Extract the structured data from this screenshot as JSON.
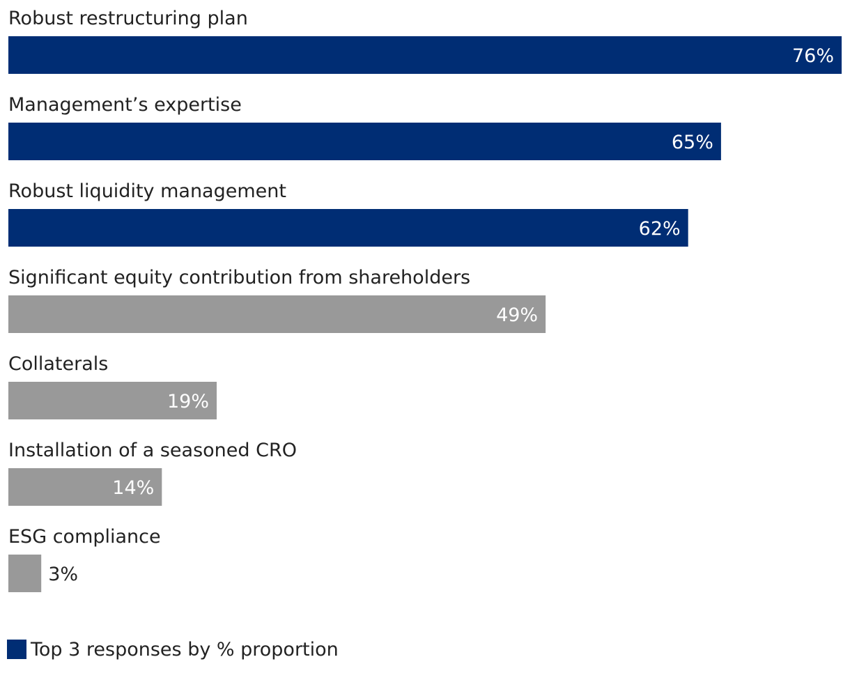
{
  "chart_data": {
    "type": "bar",
    "orientation": "horizontal",
    "categories": [
      "Robust restructuring plan",
      "Management’s expertise",
      "Robust liquidity management",
      "Significant equity contribution from shareholders",
      "Collaterals",
      "Installation of a seasoned CRO",
      "ESG compliance"
    ],
    "values": [
      76,
      65,
      62,
      49,
      19,
      14,
      3
    ],
    "value_labels": [
      "76%",
      "65%",
      "62%",
      "49%",
      "19%",
      "14%",
      "3%"
    ],
    "highlight": [
      true,
      true,
      true,
      false,
      false,
      false,
      false
    ],
    "xlim": [
      0,
      76
    ],
    "grid": false,
    "legend": {
      "label": "Top 3 responses by % proportion",
      "position": "bottom-left"
    }
  },
  "colors": {
    "highlight": "#002d74",
    "default": "#999999",
    "label_inside": "#ffffff",
    "label_outside": "#222222"
  }
}
